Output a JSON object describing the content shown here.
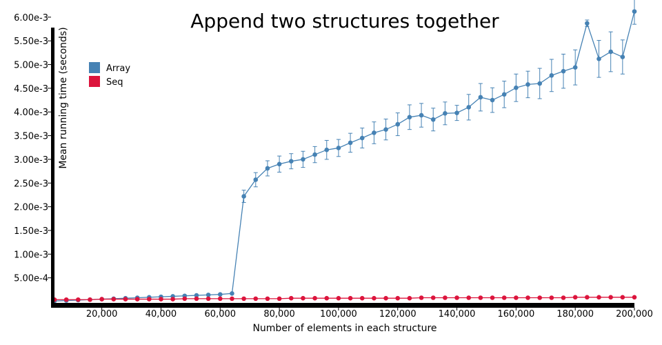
{
  "chart_data": {
    "type": "line",
    "title": "Append two structures together",
    "xlabel": "Number of elements in each structure",
    "ylabel": "Mean running time (seconds)",
    "xlim": [
      4000,
      200000
    ],
    "ylim": [
      0,
      0.0061
    ],
    "x_ticks": [
      20000,
      40000,
      60000,
      80000,
      100000,
      120000,
      140000,
      160000,
      180000,
      200000
    ],
    "x_tick_labels": [
      "20,000",
      "40,000",
      "60,000",
      "80,000",
      "100,000",
      "120,000",
      "140,000",
      "160,000",
      "180,000",
      "200,000"
    ],
    "y_ticks": [
      0.0005,
      0.001,
      0.0015,
      0.002,
      0.0025,
      0.003,
      0.0035,
      0.004,
      0.0045,
      0.005,
      0.0055,
      0.006
    ],
    "y_tick_labels": [
      "5.00e-4",
      "1.00e-3",
      "1.50e-3",
      "2.00e-3",
      "2.50e-3",
      "3.00e-3",
      "3.50e-3",
      "4.00e-3",
      "4.50e-3",
      "5.00e-3",
      "5.50e-3",
      "6.00e-3"
    ],
    "legend_position": "top-left",
    "grid": false,
    "x": [
      4000,
      8000,
      12000,
      16000,
      20000,
      24000,
      28000,
      32000,
      36000,
      40000,
      44000,
      48000,
      52000,
      56000,
      60000,
      64000,
      68000,
      72000,
      76000,
      80000,
      84000,
      88000,
      92000,
      96000,
      100000,
      104000,
      108000,
      112000,
      116000,
      120000,
      124000,
      128000,
      132000,
      136000,
      140000,
      144000,
      148000,
      152000,
      156000,
      160000,
      164000,
      168000,
      172000,
      176000,
      180000,
      184000,
      188000,
      192000,
      196000,
      200000
    ],
    "series": [
      {
        "name": "Array",
        "color": "#4682b4",
        "values": [
          1e-05,
          2e-05,
          3e-05,
          4e-05,
          5e-05,
          6e-05,
          7e-05,
          8e-05,
          9e-05,
          0.0001,
          0.00011,
          0.00012,
          0.00013,
          0.00014,
          0.00015,
          0.00017,
          0.00222,
          0.00257,
          0.00281,
          0.0029,
          0.00296,
          0.003,
          0.0031,
          0.0032,
          0.00324,
          0.00335,
          0.00345,
          0.00356,
          0.00363,
          0.00374,
          0.00389,
          0.00393,
          0.00384,
          0.00397,
          0.00398,
          0.0041,
          0.00431,
          0.00425,
          0.00437,
          0.00451,
          0.00458,
          0.0046,
          0.00477,
          0.00486,
          0.00494,
          0.00587,
          0.00512,
          0.00527,
          0.00516,
          0.00612
        ],
        "error": [
          1e-05,
          1e-05,
          1e-05,
          1e-05,
          1e-05,
          1e-05,
          1e-05,
          1e-05,
          1e-05,
          1e-05,
          1e-05,
          1e-05,
          1e-05,
          1e-05,
          1e-05,
          1e-05,
          0.00013,
          0.00015,
          0.00016,
          0.00017,
          0.00016,
          0.00017,
          0.00017,
          0.0002,
          0.00018,
          0.0002,
          0.00021,
          0.00023,
          0.00022,
          0.00024,
          0.00026,
          0.00025,
          0.00024,
          0.00024,
          0.00016,
          0.00027,
          0.00029,
          0.00026,
          0.00028,
          0.00029,
          0.00028,
          0.00032,
          0.00034,
          0.00036,
          0.00037,
          7e-05,
          0.00039,
          0.00042,
          0.00036,
          0.00027
        ]
      },
      {
        "name": "Seq",
        "color": "#dc143c",
        "values": [
          4e-05,
          4e-05,
          4e-05,
          4e-05,
          5e-05,
          5e-05,
          5e-05,
          5e-05,
          5e-05,
          5e-05,
          5e-05,
          6e-05,
          6e-05,
          6e-05,
          6e-05,
          6e-05,
          6e-05,
          6e-05,
          6e-05,
          6e-05,
          7e-05,
          7e-05,
          7e-05,
          7e-05,
          7e-05,
          7e-05,
          7e-05,
          7e-05,
          7e-05,
          7e-05,
          7e-05,
          8e-05,
          8e-05,
          8e-05,
          8e-05,
          8e-05,
          8e-05,
          8e-05,
          8e-05,
          8e-05,
          8e-05,
          8e-05,
          8e-05,
          8e-05,
          9e-05,
          9e-05,
          9e-05,
          9e-05,
          9e-05,
          9e-05
        ],
        "error": [
          5e-06,
          5e-06,
          5e-06,
          5e-06,
          5e-06,
          5e-06,
          5e-06,
          5e-06,
          5e-06,
          5e-06,
          5e-06,
          5e-06,
          5e-06,
          5e-06,
          5e-06,
          5e-06,
          5e-06,
          5e-06,
          5e-06,
          5e-06,
          5e-06,
          5e-06,
          5e-06,
          5e-06,
          5e-06,
          5e-06,
          5e-06,
          5e-06,
          5e-06,
          5e-06,
          5e-06,
          5e-06,
          5e-06,
          5e-06,
          5e-06,
          5e-06,
          5e-06,
          5e-06,
          5e-06,
          5e-06,
          5e-06,
          5e-06,
          5e-06,
          5e-06,
          5e-06,
          5e-06,
          5e-06,
          5e-06,
          5e-06,
          5e-06
        ]
      }
    ]
  }
}
